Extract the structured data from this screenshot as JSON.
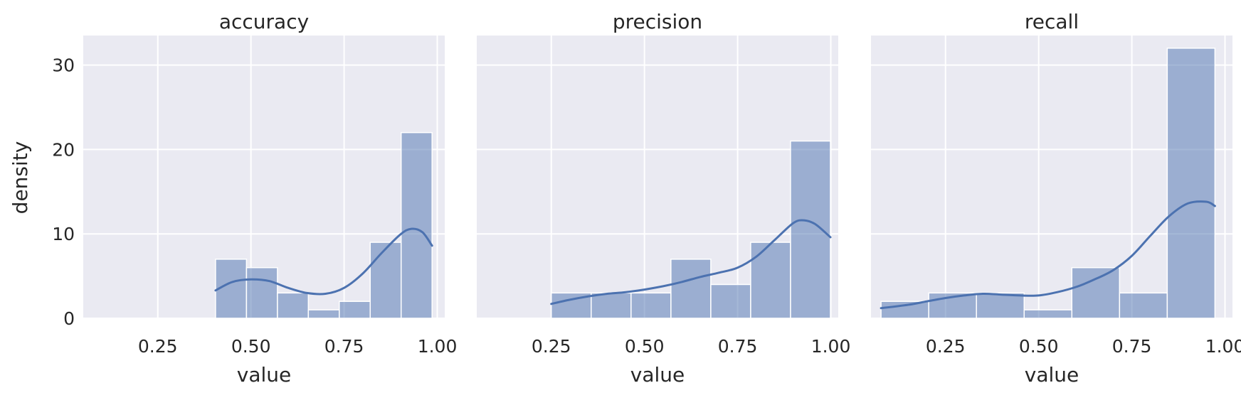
{
  "chart_data": [
    {
      "type": "histogram",
      "title": "accuracy",
      "xlabel": "value",
      "ylabel": "density",
      "xlim": [
        0.05,
        1.02
      ],
      "ylim": [
        0,
        33.5
      ],
      "xticks": [
        "0.25",
        "0.50",
        "0.75",
        "1.00"
      ],
      "xtick_values": [
        0.25,
        0.5,
        0.75,
        1.0
      ],
      "yticks": [
        "0",
        "10",
        "20",
        "30"
      ],
      "ytick_values": [
        0,
        10,
        20,
        30
      ],
      "grid": true,
      "bin_edges": [
        0.405,
        0.488,
        0.571,
        0.654,
        0.737,
        0.82,
        0.903,
        0.986
      ],
      "values": [
        7,
        6,
        3,
        1,
        2,
        9,
        22
      ],
      "kde": {
        "x": [
          0.405,
          0.45,
          0.5,
          0.55,
          0.6,
          0.65,
          0.7,
          0.75,
          0.8,
          0.85,
          0.9,
          0.93,
          0.96,
          0.986
        ],
        "y": [
          3.3,
          4.3,
          4.6,
          4.4,
          3.6,
          3.0,
          2.9,
          3.6,
          5.3,
          7.7,
          9.9,
          10.6,
          10.2,
          8.6
        ]
      }
    },
    {
      "type": "histogram",
      "title": "precision",
      "xlabel": "value",
      "ylabel": "",
      "xlim": [
        0.05,
        1.02
      ],
      "ylim": [
        0,
        33.5
      ],
      "xticks": [
        "0.25",
        "0.50",
        "0.75",
        "1.00"
      ],
      "xtick_values": [
        0.25,
        0.5,
        0.75,
        1.0
      ],
      "yticks": [],
      "ytick_values": [
        0,
        10,
        20,
        30
      ],
      "grid": true,
      "bin_edges": [
        0.25,
        0.357,
        0.464,
        0.571,
        0.678,
        0.785,
        0.892,
        0.999
      ],
      "values": [
        3,
        3,
        3,
        7,
        4,
        9,
        21
      ],
      "kde": {
        "x": [
          0.25,
          0.3,
          0.35,
          0.4,
          0.45,
          0.5,
          0.55,
          0.6,
          0.65,
          0.7,
          0.75,
          0.8,
          0.85,
          0.9,
          0.93,
          0.96,
          0.999
        ],
        "y": [
          1.7,
          2.2,
          2.6,
          2.9,
          3.1,
          3.4,
          3.8,
          4.3,
          4.9,
          5.4,
          6.0,
          7.3,
          9.3,
          11.3,
          11.6,
          11.1,
          9.6
        ]
      }
    },
    {
      "type": "histogram",
      "title": "recall",
      "xlabel": "value",
      "ylabel": "",
      "xlim": [
        0.05,
        1.02
      ],
      "ylim": [
        0,
        33.5
      ],
      "xticks": [
        "0.25",
        "0.50",
        "0.75",
        "1.00"
      ],
      "xtick_values": [
        0.25,
        0.5,
        0.75,
        1.0
      ],
      "yticks": [],
      "ytick_values": [
        0,
        10,
        20,
        30
      ],
      "grid": true,
      "bin_edges": [
        0.077,
        0.205,
        0.333,
        0.461,
        0.589,
        0.717,
        0.845,
        0.973
      ],
      "values": [
        2,
        3,
        3,
        1,
        6,
        3,
        32
      ],
      "kde": {
        "x": [
          0.077,
          0.15,
          0.2,
          0.25,
          0.3,
          0.35,
          0.4,
          0.45,
          0.5,
          0.55,
          0.6,
          0.65,
          0.7,
          0.75,
          0.8,
          0.85,
          0.9,
          0.95,
          0.973
        ],
        "y": [
          1.2,
          1.6,
          2.0,
          2.4,
          2.7,
          2.9,
          2.8,
          2.7,
          2.7,
          3.1,
          3.7,
          4.6,
          5.7,
          7.4,
          9.8,
          12.1,
          13.6,
          13.8,
          13.3
        ]
      }
    }
  ],
  "colors": {
    "background": "#eaeaf2",
    "grid": "#ffffff",
    "bar_fill": "#4c72b0",
    "bar_opacity": 0.5,
    "kde_line": "#4c72b0",
    "text": "#262626"
  }
}
